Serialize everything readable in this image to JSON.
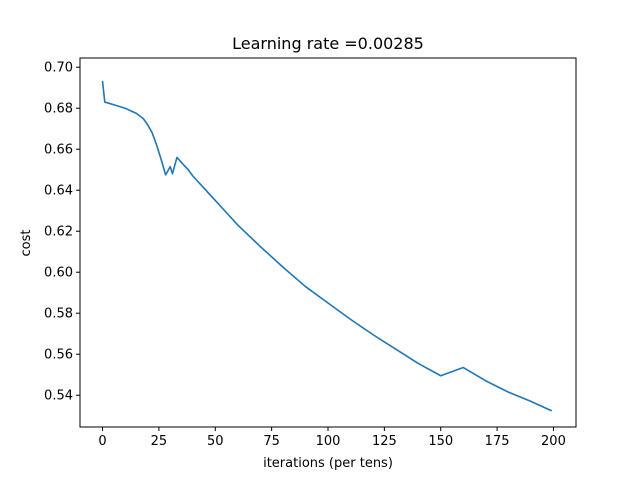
{
  "chart_data": {
    "type": "line",
    "title": "Learning rate =0.00285",
    "xlabel": "iterations (per tens)",
    "ylabel": "cost",
    "xlim": [
      -10,
      210
    ],
    "ylim": [
      0.5245,
      0.7045
    ],
    "xticks": [
      0,
      25,
      50,
      75,
      100,
      125,
      150,
      175,
      200
    ],
    "yticks": [
      0.54,
      0.56,
      0.58,
      0.6,
      0.62,
      0.64,
      0.66,
      0.68,
      0.7
    ],
    "xtick_labels": [
      "0",
      "25",
      "50",
      "75",
      "100",
      "125",
      "150",
      "175",
      "200"
    ],
    "ytick_labels": [
      "0.54",
      "0.56",
      "0.58",
      "0.60",
      "0.62",
      "0.64",
      "0.66",
      "0.68",
      "0.70"
    ],
    "grid": false,
    "series": [
      {
        "color": "#1f77b4",
        "x": [
          0,
          1,
          5,
          10,
          15,
          18,
          20,
          22,
          24,
          26,
          28,
          30,
          31,
          33,
          35,
          38,
          40,
          45,
          50,
          55,
          60,
          70,
          80,
          90,
          100,
          110,
          120,
          130,
          140,
          150,
          160,
          170,
          180,
          190,
          199
        ],
        "y": [
          0.693,
          0.683,
          0.6817,
          0.68,
          0.6775,
          0.675,
          0.672,
          0.668,
          0.662,
          0.655,
          0.6475,
          0.6515,
          0.648,
          0.656,
          0.6535,
          0.65,
          0.647,
          0.641,
          0.635,
          0.629,
          0.623,
          0.6125,
          0.6025,
          0.593,
          0.585,
          0.577,
          0.5695,
          0.5625,
          0.5555,
          0.5495,
          0.5535,
          0.547,
          0.5415,
          0.537,
          0.5325
        ]
      }
    ]
  }
}
